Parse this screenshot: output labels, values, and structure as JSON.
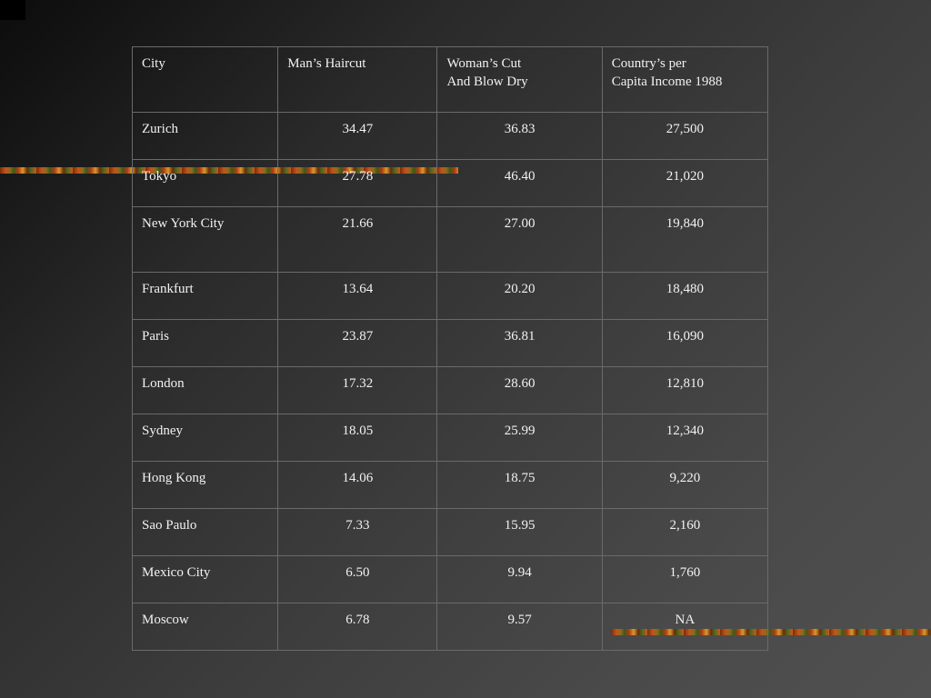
{
  "table": {
    "headers": [
      {
        "line1": "City",
        "line2": ""
      },
      {
        "line1": "Man’s Haircut",
        "line2": ""
      },
      {
        "line1": "Woman’s Cut",
        "line2": "And Blow Dry"
      },
      {
        "line1": "Country’s per",
        "line2": "Capita Income 1988"
      }
    ],
    "rows": [
      {
        "city": "Zurich",
        "mens": "34.47",
        "womens": "36.83",
        "income": "27,500"
      },
      {
        "city": "Tokyo",
        "mens": "27.78",
        "womens": "46.40",
        "income": "21,020"
      },
      {
        "city": "New York City",
        "mens": "21.66",
        "womens": "27.00",
        "income": "19,840"
      },
      {
        "city": "Frankfurt",
        "mens": "13.64",
        "womens": "20.20",
        "income": "18,480"
      },
      {
        "city": "Paris",
        "mens": "23.87",
        "womens": "36.81",
        "income": "16,090"
      },
      {
        "city": "London",
        "mens": "17.32",
        "womens": "28.60",
        "income": "12,810"
      },
      {
        "city": "Sydney",
        "mens": "18.05",
        "womens": "25.99",
        "income": "12,340"
      },
      {
        "city": "Hong Kong",
        "mens": "14.06",
        "womens": "18.75",
        "income": "9,220"
      },
      {
        "city": "Sao Paulo",
        "mens": "7.33",
        "womens": "15.95",
        "income": "2,160"
      },
      {
        "city": "Mexico City",
        "mens": "6.50",
        "womens": "9.94",
        "income": "1,760"
      },
      {
        "city": "Moscow",
        "mens": "6.78",
        "womens": "9.57",
        "income": "NA"
      }
    ]
  }
}
